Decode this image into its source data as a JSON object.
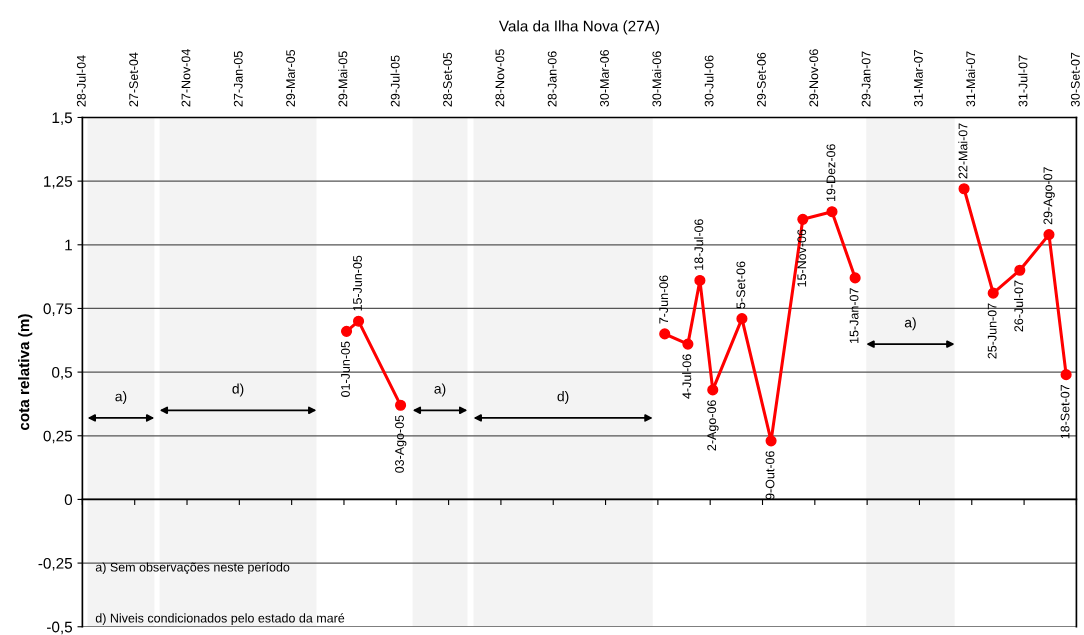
{
  "chart_data": {
    "type": "line",
    "title": "Vala da Ilha Nova (27A)",
    "ylabel": "cota relativa (m)",
    "series": [
      {
        "color": "#ff0000",
        "x": [
          "2005-06-01",
          "2005-06-15",
          "2005-08-03"
        ],
        "values": [
          0.66,
          0.7,
          0.37
        ]
      },
      {
        "color": "#ff0000",
        "x": [
          "2006-06-07",
          "2006-07-04",
          "2006-07-18",
          "2006-08-02",
          "2006-09-05",
          "2006-10-09",
          "2006-11-15",
          "2006-12-19",
          "2007-01-15"
        ],
        "values": [
          0.65,
          0.61,
          0.86,
          0.43,
          0.71,
          0.23,
          1.1,
          1.13,
          0.87
        ]
      },
      {
        "color": "#ff0000",
        "x": [
          "2007-05-22",
          "2007-06-25",
          "2007-07-26",
          "2007-08-29",
          "2007-09-18"
        ],
        "values": [
          1.22,
          0.81,
          0.9,
          1.04,
          0.49
        ]
      }
    ],
    "annotations": [
      {
        "text": "01-Jun-05",
        "x": "2005-06-01",
        "y": 0.66
      },
      {
        "text": "15-Jun-05",
        "x": "2005-06-15",
        "y": 0.7
      },
      {
        "text": "03-Ago-05",
        "x": "2005-08-03",
        "y": 0.37
      },
      {
        "text": "7-Jun-06",
        "x": "2006-06-07",
        "y": 0.65
      },
      {
        "text": "4-Jul-06",
        "x": "2006-07-04",
        "y": 0.61
      },
      {
        "text": "18-Jul-06",
        "x": "2006-07-18",
        "y": 0.86
      },
      {
        "text": "2-Ago-06",
        "x": "2006-08-02",
        "y": 0.43
      },
      {
        "text": "5-Set-06",
        "x": "2006-09-05",
        "y": 0.71
      },
      {
        "text": "9-Out-06",
        "x": "2006-10-09",
        "y": 0.23
      },
      {
        "text": "15-Nov-06",
        "x": "2006-11-15",
        "y": 1.1
      },
      {
        "text": "19-Dez-06",
        "x": "2006-12-19",
        "y": 1.13
      },
      {
        "text": "15-Jan-07",
        "x": "2007-01-15",
        "y": 0.87
      },
      {
        "text": "22-Mai-07",
        "x": "2007-05-22",
        "y": 1.22
      },
      {
        "text": "25-Jun-07",
        "x": "2007-06-25",
        "y": 0.81
      },
      {
        "text": "26-Jul-07",
        "x": "2007-07-26",
        "y": 0.9
      },
      {
        "text": "29-Ago-07",
        "x": "2007-08-29",
        "y": 1.04
      },
      {
        "text": "18-Set-07",
        "x": "2007-09-18",
        "y": 0.49
      },
      "a) Sem observações neste período",
      "d) Niveis condicionados pelo estado da maré"
    ],
    "bands": [
      {
        "axis": "x",
        "from": "2004-08-03",
        "to": "2004-10-20",
        "label": "a)"
      },
      {
        "axis": "x",
        "from": "2004-10-26",
        "to": "2005-04-27",
        "label": "d)"
      },
      {
        "axis": "x",
        "from": "2005-08-17",
        "to": "2005-10-20",
        "label": "a)"
      },
      {
        "axis": "x",
        "from": "2005-10-27",
        "to": "2006-05-24",
        "label": "d)"
      },
      {
        "axis": "x",
        "from": "2007-01-28",
        "to": "2007-05-11",
        "label": "a)"
      }
    ],
    "xlim": [
      "2004-07-28",
      "2007-09-30"
    ],
    "xticks": [
      {
        "value": "2004-07-28",
        "label": "28-Jul-04"
      },
      {
        "value": "2004-09-27",
        "label": "27-Set-04"
      },
      {
        "value": "2004-11-27",
        "label": "27-Nov-04"
      },
      {
        "value": "2005-01-27",
        "label": "27-Jan-05"
      },
      {
        "value": "2005-03-29",
        "label": "29-Mar-05"
      },
      {
        "value": "2005-05-29",
        "label": "29-Mai-05"
      },
      {
        "value": "2005-07-29",
        "label": "29-Jul-05"
      },
      {
        "value": "2005-09-28",
        "label": "28-Set-05"
      },
      {
        "value": "2005-11-28",
        "label": "28-Nov-05"
      },
      {
        "value": "2006-01-28",
        "label": "28-Jan-06"
      },
      {
        "value": "2006-03-30",
        "label": "30-Mar-06"
      },
      {
        "value": "2006-05-30",
        "label": "30-Mai-06"
      },
      {
        "value": "2006-07-30",
        "label": "30-Jul-06"
      },
      {
        "value": "2006-09-29",
        "label": "29-Set-06"
      },
      {
        "value": "2006-11-29",
        "label": "29-Nov-06"
      },
      {
        "value": "2007-01-29",
        "label": "29-Jan-07"
      },
      {
        "value": "2007-03-31",
        "label": "31-Mar-07"
      },
      {
        "value": "2007-05-31",
        "label": "31-Mai-07"
      },
      {
        "value": "2007-07-31",
        "label": "31-Jul-07"
      },
      {
        "value": "2007-09-30",
        "label": "30-Set-07"
      }
    ],
    "ylim": [
      -0.5,
      1.5
    ],
    "yticks": [
      {
        "value": -0.5,
        "label": "-0,5"
      },
      {
        "value": -0.25,
        "label": "-0,25"
      },
      {
        "value": 0,
        "label": "0"
      },
      {
        "value": 0.25,
        "label": "0,25"
      },
      {
        "value": 0.5,
        "label": "0,5"
      },
      {
        "value": 0.75,
        "label": "0,75"
      },
      {
        "value": 1,
        "label": "1"
      },
      {
        "value": 1.25,
        "label": "1,25"
      },
      {
        "value": 1.5,
        "label": "1,5"
      }
    ],
    "grid": "y",
    "marker": "circle",
    "line_style": "solid",
    "legend": false
  }
}
